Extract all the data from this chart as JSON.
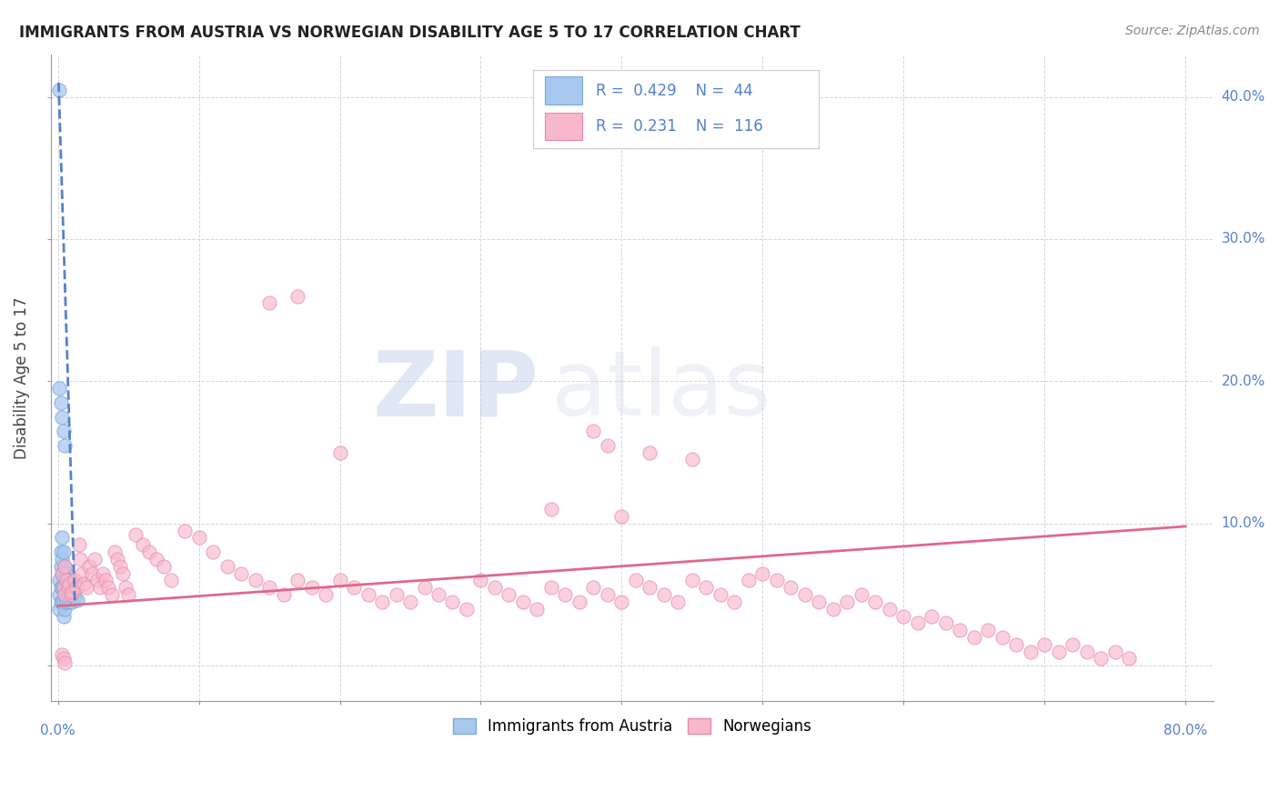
{
  "title": "IMMIGRANTS FROM AUSTRIA VS NORWEGIAN DISABILITY AGE 5 TO 17 CORRELATION CHART",
  "source": "Source: ZipAtlas.com",
  "ylabel": "Disability Age 5 to 17",
  "legend_austria": {
    "R": "0.429",
    "N": "44",
    "color": "#aec6e8"
  },
  "legend_norwegian": {
    "R": "0.231",
    "N": "116",
    "color": "#f4abbe"
  },
  "watermark_zip": "ZIP",
  "watermark_atlas": "atlas",
  "austria_scatter_x": [
    0.001,
    0.001,
    0.001,
    0.001,
    0.002,
    0.002,
    0.002,
    0.002,
    0.003,
    0.003,
    0.003,
    0.003,
    0.003,
    0.004,
    0.004,
    0.004,
    0.004,
    0.004,
    0.005,
    0.005,
    0.005,
    0.005,
    0.006,
    0.006,
    0.006,
    0.007,
    0.007,
    0.008,
    0.008,
    0.009,
    0.01,
    0.01,
    0.011,
    0.012,
    0.014,
    0.001,
    0.002,
    0.003,
    0.004,
    0.005
  ],
  "austria_scatter_y": [
    0.405,
    0.06,
    0.05,
    0.04,
    0.08,
    0.07,
    0.055,
    0.045,
    0.09,
    0.075,
    0.065,
    0.055,
    0.045,
    0.08,
    0.065,
    0.055,
    0.045,
    0.035,
    0.07,
    0.06,
    0.05,
    0.04,
    0.065,
    0.055,
    0.045,
    0.06,
    0.05,
    0.055,
    0.045,
    0.05,
    0.055,
    0.045,
    0.05,
    0.048,
    0.046,
    0.195,
    0.185,
    0.175,
    0.165,
    0.155
  ],
  "austria_trend_x": [
    0.0005,
    0.012
  ],
  "austria_trend_y": [
    0.41,
    0.045
  ],
  "norwegian_scatter_x": [
    0.003,
    0.004,
    0.005,
    0.005,
    0.006,
    0.007,
    0.008,
    0.009,
    0.01,
    0.012,
    0.013,
    0.015,
    0.016,
    0.017,
    0.018,
    0.02,
    0.022,
    0.024,
    0.026,
    0.028,
    0.03,
    0.032,
    0.034,
    0.036,
    0.038,
    0.04,
    0.042,
    0.044,
    0.046,
    0.048,
    0.05,
    0.055,
    0.06,
    0.065,
    0.07,
    0.075,
    0.08,
    0.09,
    0.1,
    0.11,
    0.12,
    0.13,
    0.14,
    0.15,
    0.16,
    0.17,
    0.18,
    0.19,
    0.2,
    0.21,
    0.22,
    0.23,
    0.24,
    0.25,
    0.26,
    0.27,
    0.28,
    0.29,
    0.3,
    0.31,
    0.32,
    0.33,
    0.34,
    0.35,
    0.36,
    0.37,
    0.38,
    0.39,
    0.4,
    0.41,
    0.42,
    0.43,
    0.44,
    0.45,
    0.46,
    0.47,
    0.48,
    0.49,
    0.5,
    0.51,
    0.52,
    0.53,
    0.54,
    0.55,
    0.56,
    0.57,
    0.58,
    0.59,
    0.6,
    0.61,
    0.62,
    0.63,
    0.64,
    0.65,
    0.66,
    0.67,
    0.68,
    0.69,
    0.7,
    0.71,
    0.72,
    0.73,
    0.74,
    0.75,
    0.76,
    0.38,
    0.39,
    0.42,
    0.45,
    0.15,
    0.17,
    0.2,
    0.35,
    0.4,
    0.003,
    0.004,
    0.005
  ],
  "norwegian_scatter_y": [
    0.065,
    0.055,
    0.07,
    0.05,
    0.06,
    0.055,
    0.058,
    0.05,
    0.052,
    0.06,
    0.055,
    0.085,
    0.075,
    0.065,
    0.058,
    0.055,
    0.07,
    0.065,
    0.075,
    0.06,
    0.055,
    0.065,
    0.06,
    0.055,
    0.05,
    0.08,
    0.075,
    0.07,
    0.065,
    0.055,
    0.05,
    0.092,
    0.085,
    0.08,
    0.075,
    0.07,
    0.06,
    0.095,
    0.09,
    0.08,
    0.07,
    0.065,
    0.06,
    0.055,
    0.05,
    0.06,
    0.055,
    0.05,
    0.06,
    0.055,
    0.05,
    0.045,
    0.05,
    0.045,
    0.055,
    0.05,
    0.045,
    0.04,
    0.06,
    0.055,
    0.05,
    0.045,
    0.04,
    0.055,
    0.05,
    0.045,
    0.055,
    0.05,
    0.045,
    0.06,
    0.055,
    0.05,
    0.045,
    0.06,
    0.055,
    0.05,
    0.045,
    0.06,
    0.065,
    0.06,
    0.055,
    0.05,
    0.045,
    0.04,
    0.045,
    0.05,
    0.045,
    0.04,
    0.035,
    0.03,
    0.035,
    0.03,
    0.025,
    0.02,
    0.025,
    0.02,
    0.015,
    0.01,
    0.015,
    0.01,
    0.015,
    0.01,
    0.005,
    0.01,
    0.005,
    0.165,
    0.155,
    0.15,
    0.145,
    0.255,
    0.26,
    0.15,
    0.11,
    0.105,
    0.008,
    0.005,
    0.002
  ],
  "norwegian_trend_x": [
    0.0,
    0.8
  ],
  "norwegian_trend_y": [
    0.042,
    0.098
  ],
  "xlim": [
    -0.005,
    0.82
  ],
  "ylim": [
    -0.025,
    0.43
  ],
  "austria_color": "#a8c8f0",
  "norwegian_color": "#f8b8cc",
  "austria_dot_edge": "#7aaad8",
  "norwegian_dot_edge": "#e888a8",
  "austria_trend_color": "#5580cc",
  "norwegian_trend_color": "#e06888",
  "background_color": "#ffffff",
  "grid_color": "#cccccc"
}
